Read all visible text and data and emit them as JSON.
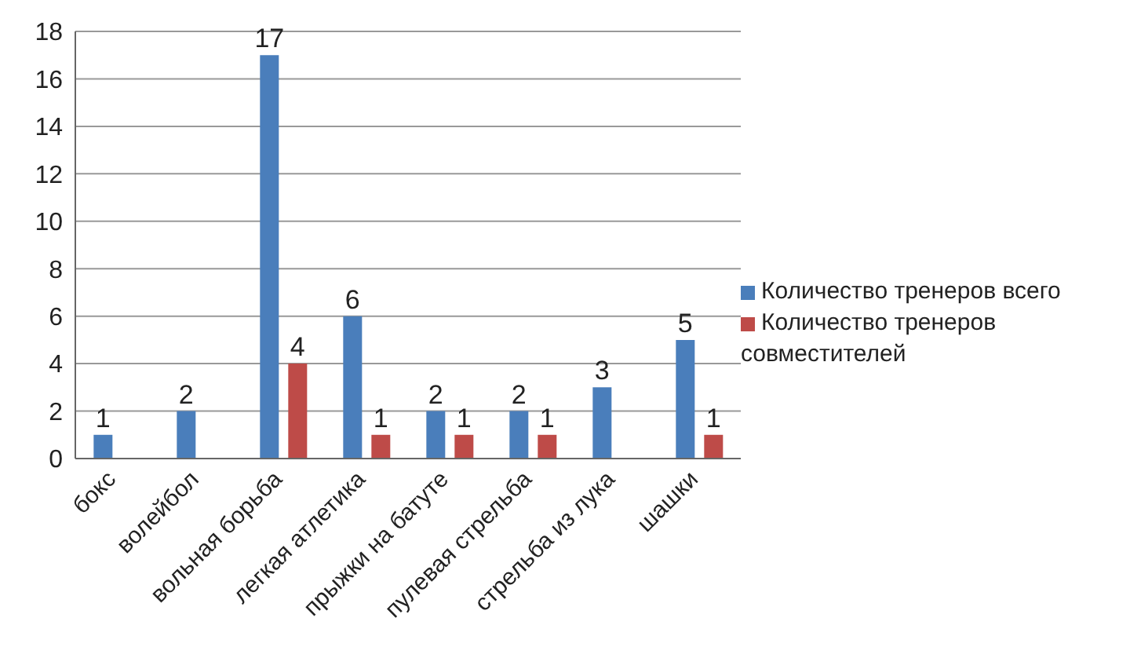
{
  "chart_data": {
    "type": "bar",
    "categories": [
      "бокс",
      "волейбол",
      "вольная борьба",
      "легкая атлетика",
      "прыжки на батуте",
      "пулевая стрельба",
      "стрельба из лука",
      "шашки"
    ],
    "series": [
      {
        "name": "Количество тренеров всего",
        "color": "#4a7ebb",
        "values": [
          1,
          2,
          17,
          6,
          2,
          2,
          3,
          5
        ],
        "value_labels": [
          "1",
          "2",
          "17",
          "6",
          "2",
          "2",
          "3",
          "5"
        ]
      },
      {
        "name": "Количество тренеров совместителей",
        "color": "#be4b48",
        "values": [
          0,
          0,
          4,
          1,
          1,
          1,
          0,
          1
        ],
        "value_labels": [
          null,
          null,
          "4",
          "1",
          "1",
          "1",
          null,
          "1"
        ]
      }
    ],
    "ylim": [
      0,
      18
    ],
    "yticks": [
      0,
      2,
      4,
      6,
      8,
      10,
      12,
      14,
      16,
      18
    ],
    "grid": "y",
    "legend": "right"
  }
}
